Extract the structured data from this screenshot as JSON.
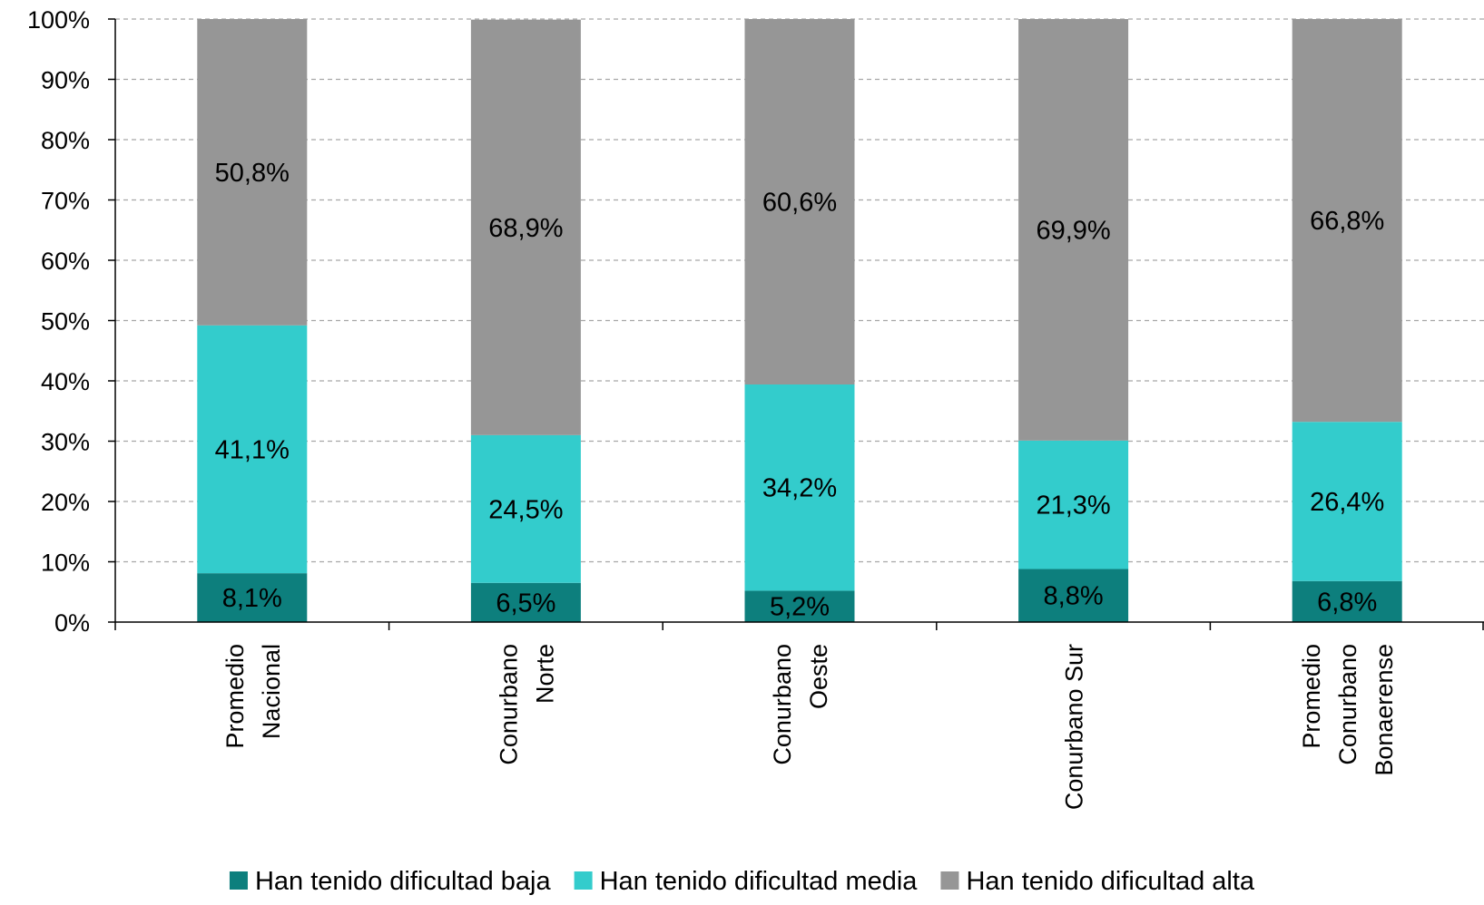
{
  "chart_data": {
    "type": "bar",
    "stacked": true,
    "categories": [
      [
        "Promedio",
        "Nacional"
      ],
      [
        "Conurbano",
        "Norte"
      ],
      [
        "Conurbano",
        "Oeste"
      ],
      [
        "Conurbano Sur"
      ],
      [
        "Promedio",
        "Conurbano",
        "Bonaerense"
      ]
    ],
    "series": [
      {
        "name": "Han tenido dificultad baja",
        "color": "#0d7f7d",
        "values": [
          8.1,
          6.5,
          5.2,
          8.8,
          6.8
        ],
        "labels": [
          "8,1%",
          "6,5%",
          "5,2%",
          "8,8%",
          "6,8%"
        ]
      },
      {
        "name": "Han tenido dificultad media",
        "color": "#33cccc",
        "values": [
          41.1,
          24.5,
          34.2,
          21.3,
          26.4
        ],
        "labels": [
          "41,1%",
          "24,5%",
          "34,2%",
          "21,3%",
          "26,4%"
        ]
      },
      {
        "name": "Han tenido dificultad alta",
        "color": "#969696",
        "values": [
          50.8,
          68.9,
          60.6,
          69.9,
          66.8
        ],
        "labels": [
          "50,8%",
          "68,9%",
          "60,6%",
          "69,9%",
          "66,8%"
        ]
      }
    ],
    "yticks": [
      "0%",
      "10%",
      "20%",
      "30%",
      "40%",
      "50%",
      "60%",
      "70%",
      "80%",
      "90%",
      "100%"
    ],
    "ylim": [
      0,
      100
    ],
    "grid": true,
    "legend_position": "bottom",
    "title": "",
    "xlabel": "",
    "ylabel": ""
  }
}
